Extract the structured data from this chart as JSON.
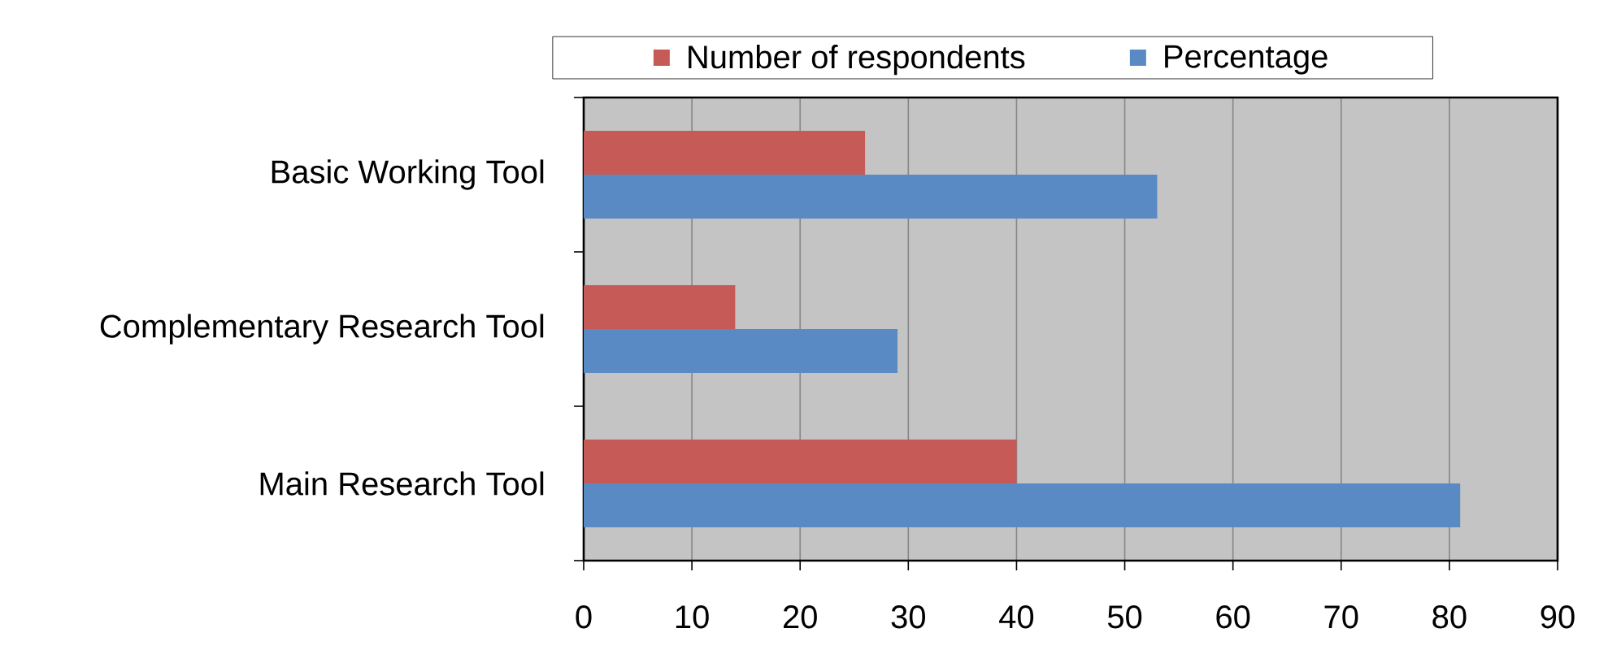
{
  "chart_data": {
    "type": "bar",
    "orientation": "horizontal",
    "categories": [
      "Basic Working Tool",
      "Complementary Research Tool",
      "Main Research Tool"
    ],
    "series": [
      {
        "name": "Number of respondents",
        "color": "#c55a57",
        "values": [
          26,
          14,
          40
        ]
      },
      {
        "name": "Percentage",
        "color": "#5a8ac4",
        "values": [
          53,
          29,
          81
        ]
      }
    ],
    "xlim": [
      0,
      90
    ],
    "xticks": [
      0,
      10,
      20,
      30,
      40,
      50,
      60,
      70,
      80,
      90
    ],
    "grid": "x",
    "legend": "top"
  }
}
